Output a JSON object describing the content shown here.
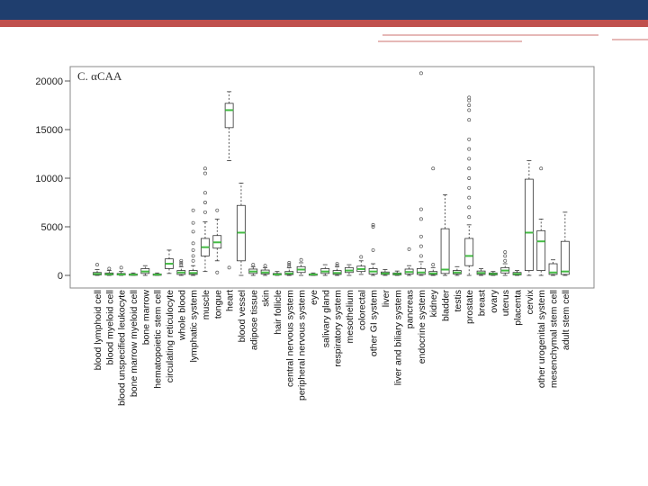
{
  "theme": {
    "band_color": "#1f3e6e",
    "accent_color": "#c0504d",
    "median_color": "#44bb44"
  },
  "chart_data": {
    "type": "box",
    "title": "C. αCAA",
    "xlabel": "",
    "ylabel": "",
    "ylim": [
      0,
      21000
    ],
    "yticks": [
      0,
      5000,
      10000,
      15000,
      20000
    ],
    "categories": [
      "blood lymphoid cell",
      "blood myeloid cell",
      "blood unspecified leukocyte",
      "bone marrow myeloid cell",
      "bone marrow",
      "hematopoietic stem cell",
      "circulating reticulocyte",
      "whole blood",
      "lymphatic system",
      "muscle",
      "tongue",
      "heart",
      "blood vessel",
      "adipose tissue",
      "skin",
      "hair follicle",
      "central nervous system",
      "peripheral nervous system",
      "eye",
      "salivary gland",
      "respiratory system",
      "mesothelium",
      "colorectal",
      "other GI system",
      "liver",
      "liver and biliary system",
      "pancreas",
      "endocrine system",
      "kidney",
      "bladder",
      "testis",
      "prostate",
      "breast",
      "ovary",
      "uterus",
      "placenta",
      "cervix",
      "other urogenital system",
      "mesenchymal stem cell",
      "adult stem cell"
    ],
    "boxes": [
      {
        "q1": 50,
        "median": 150,
        "q3": 300,
        "wlo": 0,
        "whi": 600,
        "outliers": [
          1100
        ]
      },
      {
        "q1": 50,
        "median": 120,
        "q3": 250,
        "wlo": 0,
        "whi": 500,
        "outliers": [
          700
        ]
      },
      {
        "q1": 40,
        "median": 100,
        "q3": 200,
        "wlo": 0,
        "whi": 400,
        "outliers": [
          800
        ]
      },
      {
        "q1": 30,
        "median": 80,
        "q3": 150,
        "wlo": 0,
        "whi": 250,
        "outliers": []
      },
      {
        "q1": 200,
        "median": 400,
        "q3": 700,
        "wlo": 0,
        "whi": 1000,
        "outliers": []
      },
      {
        "q1": 30,
        "median": 80,
        "q3": 150,
        "wlo": 0,
        "whi": 250,
        "outliers": []
      },
      {
        "q1": 700,
        "median": 1200,
        "q3": 1700,
        "wlo": 200,
        "whi": 2600,
        "outliers": []
      },
      {
        "q1": 100,
        "median": 300,
        "q3": 500,
        "wlo": 0,
        "whi": 900,
        "outliers": [
          1100,
          1300,
          1500
        ]
      },
      {
        "q1": 100,
        "median": 250,
        "q3": 500,
        "wlo": 0,
        "whi": 1000,
        "outliers": [
          1500,
          2000,
          2600,
          3300,
          4500,
          5400,
          6700
        ]
      },
      {
        "q1": 2000,
        "median": 2900,
        "q3": 3800,
        "wlo": 400,
        "whi": 5500,
        "outliers": [
          6500,
          7500,
          8500,
          10500,
          11000
        ]
      },
      {
        "q1": 2800,
        "median": 3400,
        "q3": 4100,
        "wlo": 1500,
        "whi": 5800,
        "outliers": [
          300,
          6700
        ]
      },
      {
        "q1": 15200,
        "median": 17000,
        "q3": 17700,
        "wlo": 11800,
        "whi": 18900,
        "outliers": [
          800
        ]
      },
      {
        "q1": 1500,
        "median": 4400,
        "q3": 7200,
        "wlo": 0,
        "whi": 9500,
        "outliers": []
      },
      {
        "q1": 200,
        "median": 400,
        "q3": 650,
        "wlo": 0,
        "whi": 900,
        "outliers": [
          1100
        ]
      },
      {
        "q1": 150,
        "median": 300,
        "q3": 550,
        "wlo": 0,
        "whi": 800,
        "outliers": [
          1000
        ]
      },
      {
        "q1": 50,
        "median": 100,
        "q3": 200,
        "wlo": 0,
        "whi": 400,
        "outliers": []
      },
      {
        "q1": 80,
        "median": 200,
        "q3": 400,
        "wlo": 0,
        "whi": 800,
        "outliers": [
          900,
          1100,
          1300
        ]
      },
      {
        "q1": 300,
        "median": 600,
        "q3": 900,
        "wlo": 0,
        "whi": 1300,
        "outliers": [
          1600
        ]
      },
      {
        "q1": 50,
        "median": 100,
        "q3": 150,
        "wlo": 0,
        "whi": 250,
        "outliers": []
      },
      {
        "q1": 200,
        "median": 400,
        "q3": 700,
        "wlo": 0,
        "whi": 1100,
        "outliers": []
      },
      {
        "q1": 100,
        "median": 250,
        "q3": 500,
        "wlo": 0,
        "whi": 900,
        "outliers": [
          1000,
          1200
        ]
      },
      {
        "q1": 300,
        "median": 500,
        "q3": 800,
        "wlo": 0,
        "whi": 1100,
        "outliers": []
      },
      {
        "q1": 400,
        "median": 650,
        "q3": 950,
        "wlo": 100,
        "whi": 1500,
        "outliers": [
          1900
        ]
      },
      {
        "q1": 150,
        "median": 400,
        "q3": 700,
        "wlo": 0,
        "whi": 1200,
        "outliers": [
          2600,
          5000,
          5200
        ]
      },
      {
        "q1": 100,
        "median": 200,
        "q3": 350,
        "wlo": 0,
        "whi": 600,
        "outliers": []
      },
      {
        "q1": 50,
        "median": 150,
        "q3": 250,
        "wlo": 0,
        "whi": 450,
        "outliers": []
      },
      {
        "q1": 150,
        "median": 350,
        "q3": 650,
        "wlo": 0,
        "whi": 1000,
        "outliers": [
          2700
        ]
      },
      {
        "q1": 100,
        "median": 300,
        "q3": 700,
        "wlo": 0,
        "whi": 1400,
        "outliers": [
          2000,
          3000,
          4000,
          5800,
          6800,
          20800
        ]
      },
      {
        "q1": 80,
        "median": 200,
        "q3": 400,
        "wlo": 0,
        "whi": 800,
        "outliers": [
          1100,
          11000
        ]
      },
      {
        "q1": 200,
        "median": 600,
        "q3": 4800,
        "wlo": 0,
        "whi": 8300,
        "outliers": []
      },
      {
        "q1": 150,
        "median": 300,
        "q3": 500,
        "wlo": 0,
        "whi": 900,
        "outliers": []
      },
      {
        "q1": 1000,
        "median": 2000,
        "q3": 3800,
        "wlo": 0,
        "whi": 5200,
        "outliers": [
          6000,
          7000,
          8000,
          9000,
          10000,
          11000,
          12000,
          13000,
          14000,
          16000,
          17000,
          17500,
          18000,
          18300
        ]
      },
      {
        "q1": 100,
        "median": 250,
        "q3": 450,
        "wlo": 0,
        "whi": 700,
        "outliers": []
      },
      {
        "q1": 50,
        "median": 150,
        "q3": 250,
        "wlo": 0,
        "whi": 400,
        "outliers": []
      },
      {
        "q1": 250,
        "median": 500,
        "q3": 800,
        "wlo": 0,
        "whi": 1200,
        "outliers": [
          1500,
          2000,
          2400
        ]
      },
      {
        "q1": 50,
        "median": 150,
        "q3": 300,
        "wlo": 0,
        "whi": 500,
        "outliers": []
      },
      {
        "q1": 500,
        "median": 4400,
        "q3": 9900,
        "wlo": 0,
        "whi": 11800,
        "outliers": []
      },
      {
        "q1": 500,
        "median": 3500,
        "q3": 4600,
        "wlo": 0,
        "whi": 5800,
        "outliers": [
          11000
        ]
      },
      {
        "q1": 100,
        "median": 300,
        "q3": 1200,
        "wlo": 0,
        "whi": 1600,
        "outliers": []
      },
      {
        "q1": 100,
        "median": 400,
        "q3": 3500,
        "wlo": 0,
        "whi": 6500,
        "outliers": []
      }
    ]
  }
}
